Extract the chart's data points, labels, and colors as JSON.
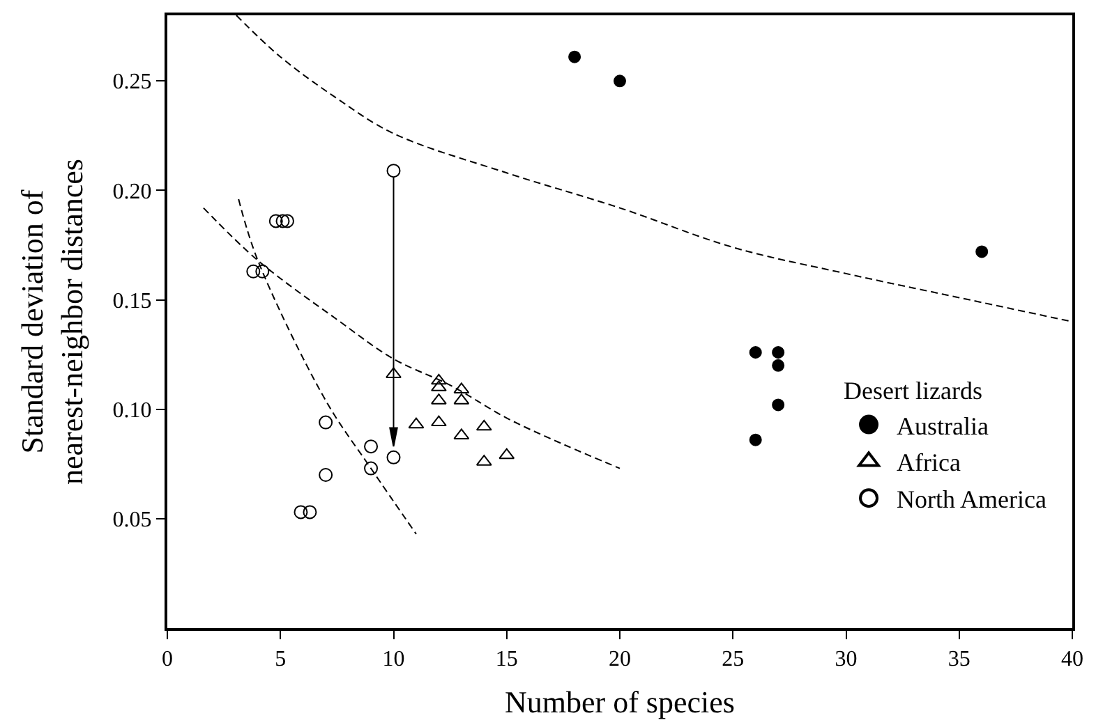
{
  "chart_data": {
    "type": "scatter",
    "xlabel": "Number of species",
    "ylabel": "Standard deviation of\nnearest-neighbor distances",
    "legend_title": "Desert lizards",
    "legend": "bottom right",
    "xlim": [
      0,
      40
    ],
    "xticks": [
      0,
      5,
      10,
      15,
      20,
      25,
      30,
      35,
      40
    ],
    "ylim": [
      0,
      0.28
    ],
    "yticks": [
      0.05,
      {
        "value": 0.1,
        "label": "0.10"
      },
      0.15,
      {
        "value": 0.2,
        "label": "0.20"
      },
      0.25
    ],
    "series": [
      {
        "name": "Australia",
        "color": "#000000",
        "marker": "circle",
        "x": [
          18,
          20,
          36,
          26,
          27,
          27,
          27,
          26
        ],
        "values": [
          0.261,
          0.25,
          0.172,
          0.126,
          0.126,
          0.12,
          0.102,
          0.086
        ]
      },
      {
        "name": "Africa",
        "color": "#000000",
        "marker": "triangle",
        "x": [
          10,
          12,
          12,
          12,
          12,
          11,
          13,
          13,
          13,
          14,
          14,
          15
        ],
        "values": [
          0.116,
          0.113,
          0.11,
          0.104,
          0.094,
          0.093,
          0.109,
          0.104,
          0.088,
          0.092,
          0.076,
          0.079
        ]
      },
      {
        "name": "North America",
        "color": "#000000",
        "marker": "circle",
        "x": [
          10,
          10,
          4.8,
          5.1,
          5.3,
          3.8,
          4.2,
          7,
          7,
          5.9,
          6.3,
          9,
          9
        ],
        "values": [
          0.209,
          0.078,
          0.186,
          0.186,
          0.186,
          0.163,
          0.163,
          0.094,
          0.07,
          0.053,
          0.053,
          0.083,
          0.073
        ]
      },
      {
        "type": "line",
        "line_style": "dashed",
        "marker": "none",
        "color": "#000000",
        "x": [
          3.05,
          5,
          7.5,
          10,
          15,
          20,
          25,
          30,
          35,
          40
        ],
        "values": [
          0.28,
          0.261,
          0.242,
          0.226,
          0.208,
          0.192,
          0.174,
          0.162,
          0.151,
          0.14
        ]
      },
      {
        "type": "line",
        "line_style": "dashed",
        "marker": "none",
        "color": "#000000",
        "x": [
          1.6,
          4,
          7.5,
          10,
          12.5,
          15,
          17.5,
          20
        ],
        "values": [
          0.192,
          0.168,
          0.141,
          0.123,
          0.111,
          0.096,
          0.084,
          0.073
        ]
      },
      {
        "type": "line",
        "line_style": "dashed",
        "marker": "none",
        "color": "#000000",
        "x": [
          3.15,
          4,
          7,
          9,
          11
        ],
        "values": [
          0.196,
          0.168,
          0.104,
          0.073,
          0.043
        ]
      }
    ]
  }
}
